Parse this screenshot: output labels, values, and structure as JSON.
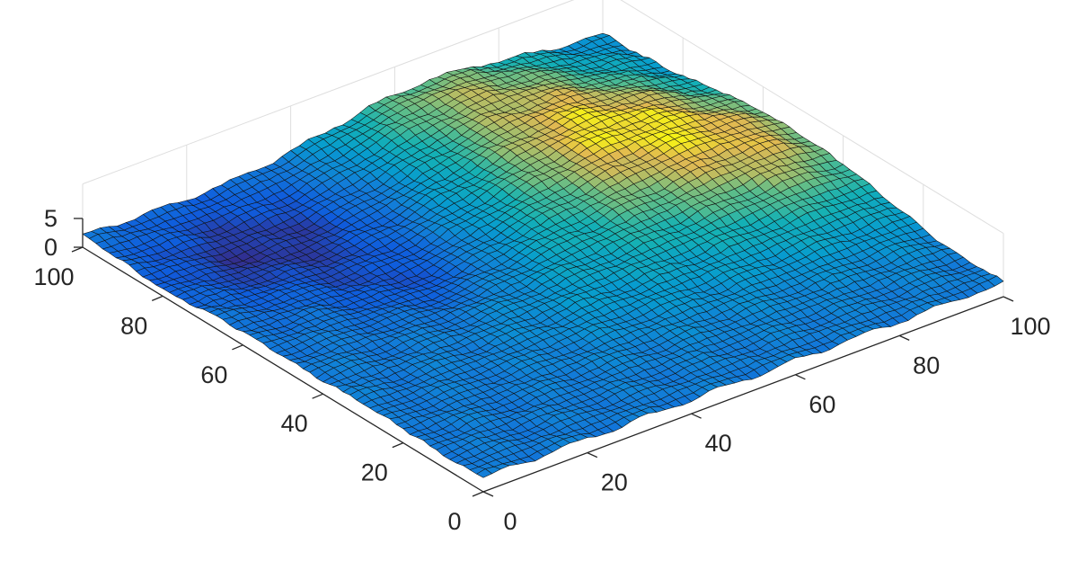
{
  "chart_data": {
    "type": "surface",
    "title": "",
    "xlabel": "",
    "ylabel": "",
    "zlabel": "",
    "xlim": [
      0,
      100
    ],
    "ylim": [
      0,
      100
    ],
    "zlim": [
      0,
      5
    ],
    "grid": true,
    "colormap": "parula",
    "edge_color": "#111111",
    "mesh_resolution": [
      61,
      61
    ],
    "x_ticks": [
      {
        "value": 0,
        "label": "0"
      },
      {
        "value": 20,
        "label": "20"
      },
      {
        "value": 40,
        "label": "40"
      },
      {
        "value": 60,
        "label": "60"
      },
      {
        "value": 80,
        "label": "80"
      },
      {
        "value": 100,
        "label": "100"
      }
    ],
    "y_ticks": [
      {
        "value": 0,
        "label": "0"
      },
      {
        "value": 20,
        "label": "20"
      },
      {
        "value": 40,
        "label": "40"
      },
      {
        "value": 60,
        "label": "60"
      },
      {
        "value": 80,
        "label": "80"
      },
      {
        "value": 100,
        "label": "100"
      }
    ],
    "z_ticks": [
      {
        "value": 0,
        "label": "0"
      },
      {
        "value": 5,
        "label": "5"
      }
    ],
    "surface_features": [
      {
        "kind": "low",
        "x": 22,
        "y": 82,
        "sx": 16,
        "sy": 13,
        "amp": -2.4
      },
      {
        "kind": "low",
        "x": 32,
        "y": 57,
        "sx": 9,
        "sy": 9,
        "amp": -1.6
      },
      {
        "kind": "high",
        "x": 74,
        "y": 72,
        "sx": 17,
        "sy": 18,
        "amp": 5.4
      },
      {
        "kind": "high",
        "x": 94,
        "y": 48,
        "sx": 13,
        "sy": 17,
        "amp": 3.8
      },
      {
        "kind": "high",
        "x": 62,
        "y": 98,
        "sx": 15,
        "sy": 10,
        "amp": 2.8
      },
      {
        "kind": "high",
        "x": 58,
        "y": 40,
        "sx": 20,
        "sy": 16,
        "amp": 1.6
      }
    ],
    "base_level": 2.4,
    "roughness": 0.35
  }
}
